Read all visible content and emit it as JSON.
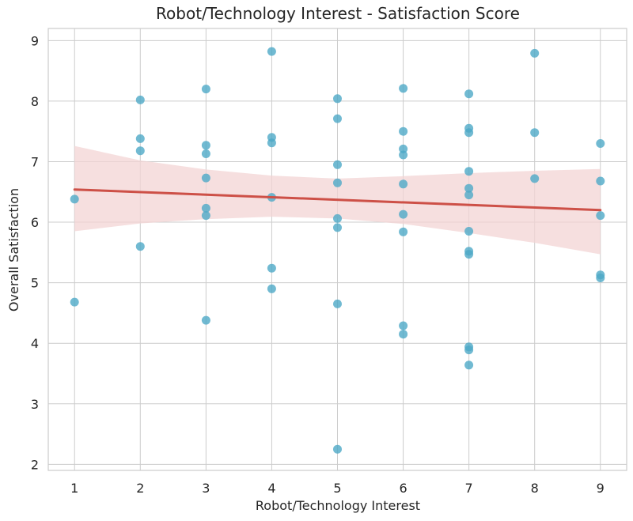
{
  "chart_data": {
    "type": "scatter",
    "title": "Robot/Technology Interest - Satisfaction Score",
    "xlabel": "Robot/Technology Interest",
    "ylabel": "Overall Satisfaction",
    "xlim": [
      0.6,
      9.4
    ],
    "ylim": [
      1.9,
      9.2
    ],
    "xticks": [
      1,
      2,
      3,
      4,
      5,
      6,
      7,
      8,
      9
    ],
    "yticks": [
      2,
      3,
      4,
      5,
      6,
      7,
      8,
      9
    ],
    "grid": true,
    "colors": {
      "points": "#4da9c7",
      "regression_line": "#cd5047",
      "confidence_band": "#f3d4d4",
      "grid": "#cccccc"
    },
    "points": [
      {
        "x": 1,
        "y": 6.38
      },
      {
        "x": 1,
        "y": 4.68
      },
      {
        "x": 2,
        "y": 8.02
      },
      {
        "x": 2,
        "y": 7.38
      },
      {
        "x": 2,
        "y": 7.18
      },
      {
        "x": 2,
        "y": 5.6
      },
      {
        "x": 3,
        "y": 8.2
      },
      {
        "x": 3,
        "y": 7.27
      },
      {
        "x": 3,
        "y": 7.13
      },
      {
        "x": 3,
        "y": 6.73
      },
      {
        "x": 3,
        "y": 6.23
      },
      {
        "x": 3,
        "y": 6.11
      },
      {
        "x": 3,
        "y": 4.38
      },
      {
        "x": 4,
        "y": 8.82
      },
      {
        "x": 4,
        "y": 7.4
      },
      {
        "x": 4,
        "y": 7.31
      },
      {
        "x": 4,
        "y": 6.41
      },
      {
        "x": 4,
        "y": 5.24
      },
      {
        "x": 4,
        "y": 4.9
      },
      {
        "x": 5,
        "y": 8.04
      },
      {
        "x": 5,
        "y": 7.71
      },
      {
        "x": 5,
        "y": 6.95
      },
      {
        "x": 5,
        "y": 6.65
      },
      {
        "x": 5,
        "y": 6.06
      },
      {
        "x": 5,
        "y": 5.91
      },
      {
        "x": 5,
        "y": 4.65
      },
      {
        "x": 5,
        "y": 2.25
      },
      {
        "x": 6,
        "y": 8.21
      },
      {
        "x": 6,
        "y": 7.5
      },
      {
        "x": 6,
        "y": 7.21
      },
      {
        "x": 6,
        "y": 7.11
      },
      {
        "x": 6,
        "y": 6.63
      },
      {
        "x": 6,
        "y": 6.13
      },
      {
        "x": 6,
        "y": 5.84
      },
      {
        "x": 6,
        "y": 4.29
      },
      {
        "x": 6,
        "y": 4.15
      },
      {
        "x": 7,
        "y": 8.12
      },
      {
        "x": 7,
        "y": 7.55
      },
      {
        "x": 7,
        "y": 7.48
      },
      {
        "x": 7,
        "y": 6.84
      },
      {
        "x": 7,
        "y": 6.56
      },
      {
        "x": 7,
        "y": 6.45
      },
      {
        "x": 7,
        "y": 5.85
      },
      {
        "x": 7,
        "y": 5.52
      },
      {
        "x": 7,
        "y": 5.47
      },
      {
        "x": 7,
        "y": 3.94
      },
      {
        "x": 7,
        "y": 3.89
      },
      {
        "x": 7,
        "y": 3.64
      },
      {
        "x": 8,
        "y": 8.79
      },
      {
        "x": 8,
        "y": 7.48
      },
      {
        "x": 8,
        "y": 6.72
      },
      {
        "x": 9,
        "y": 7.3
      },
      {
        "x": 9,
        "y": 6.68
      },
      {
        "x": 9,
        "y": 6.11
      },
      {
        "x": 9,
        "y": 5.13
      },
      {
        "x": 9,
        "y": 5.08
      }
    ],
    "regression": {
      "x": [
        1,
        9
      ],
      "y": [
        6.54,
        6.2
      ]
    },
    "confidence_band": {
      "x": [
        1,
        2,
        3,
        4,
        5,
        6,
        7,
        8,
        9
      ],
      "lower": [
        5.85,
        5.98,
        6.05,
        6.09,
        6.06,
        5.97,
        5.82,
        5.66,
        5.47
      ],
      "upper": [
        7.26,
        7.02,
        6.87,
        6.77,
        6.72,
        6.76,
        6.81,
        6.85,
        6.88
      ]
    }
  }
}
